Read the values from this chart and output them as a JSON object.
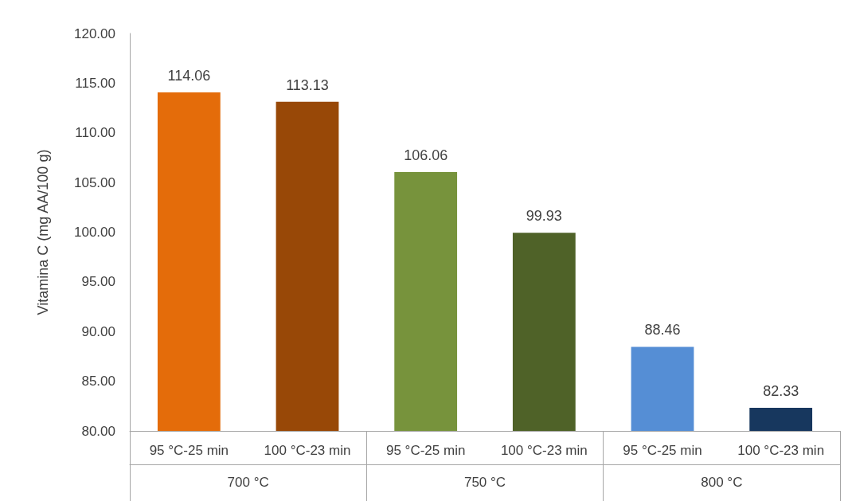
{
  "chart_data": {
    "type": "bar",
    "ylabel": "Vitamina C (mg AA/100 g)",
    "categories": [
      "95 °C-25 min",
      "100 °C-23 min",
      "95 °C-25 min",
      "100 °C-23 min",
      "95 °C-25 min",
      "100 °C-23 min"
    ],
    "values": [
      114.06,
      113.13,
      106.06,
      99.93,
      88.46,
      82.33
    ],
    "colors": [
      "#e46c0a",
      "#984807",
      "#77933c",
      "#4f6228",
      "#558ed5",
      "#17375e"
    ],
    "ylim": [
      80,
      120
    ],
    "yticks": [
      {
        "value": 80,
        "label": "80.00"
      },
      {
        "value": 85,
        "label": "85.00"
      },
      {
        "value": 90,
        "label": "90.00"
      },
      {
        "value": 95,
        "label": "95.00"
      },
      {
        "value": 100,
        "label": "100.00"
      },
      {
        "value": 105,
        "label": "105.00"
      },
      {
        "value": 110,
        "label": "110.00"
      },
      {
        "value": 115,
        "label": "115.00"
      },
      {
        "value": 120,
        "label": "120.00"
      }
    ],
    "annotations": [
      "700 °C",
      "750 °C",
      "800 °C"
    ],
    "data_labels": true,
    "grid": false
  }
}
